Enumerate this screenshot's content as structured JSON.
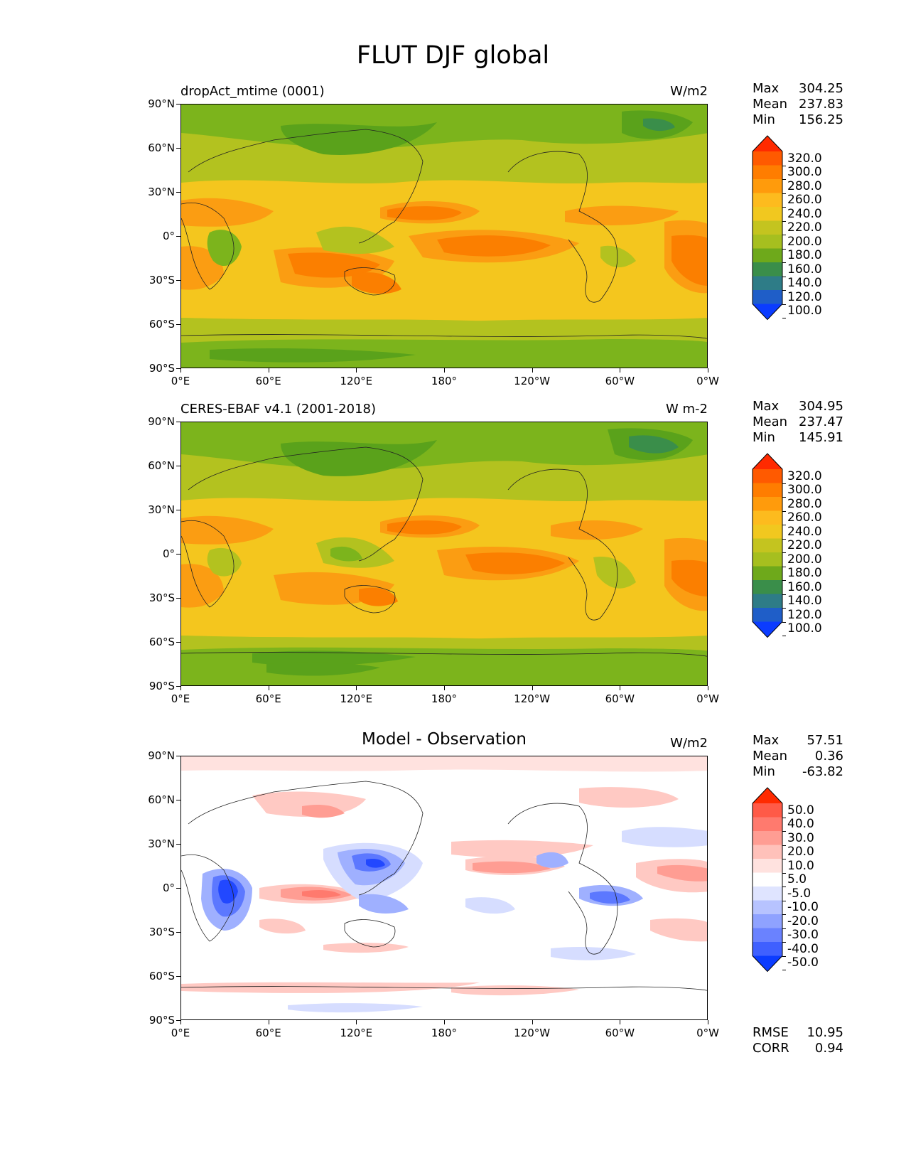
{
  "figure": {
    "title": "FLUT DJF global"
  },
  "axes": {
    "lat_ticks": [
      "90°N",
      "60°N",
      "30°N",
      "0°",
      "30°S",
      "60°S",
      "90°S"
    ],
    "lon_ticks": [
      "0°E",
      "60°E",
      "120°E",
      "180°",
      "120°W",
      "60°W",
      "0°W"
    ]
  },
  "panels": [
    {
      "id": "model",
      "title": "dropAct_mtime (0001)",
      "title_style": "left",
      "units": "W/m2",
      "stats": {
        "max_label": "Max",
        "max": "304.25",
        "mean_label": "Mean",
        "mean": "237.83",
        "min_label": "Min",
        "min": "156.25"
      },
      "colorbar": {
        "levels": [
          "320.0",
          "300.0",
          "280.0",
          "260.0",
          "240.0",
          "220.0",
          "200.0",
          "180.0",
          "160.0",
          "140.0",
          "120.0",
          "100.0"
        ],
        "colors": [
          "#ff2a00",
          "#ff5a00",
          "#ff7d00",
          "#ff9b0c",
          "#fdbb1e",
          "#f1c81f",
          "#c4c41f",
          "#a6bf1f",
          "#6ea91b",
          "#3a8e4a",
          "#2e7c87",
          "#1f5ec8",
          "#0b3cff"
        ]
      }
    },
    {
      "id": "obs",
      "title": "CERES-EBAF v4.1 (2001-2018)",
      "title_style": "left",
      "units": "W m-2",
      "stats": {
        "max_label": "Max",
        "max": "304.95",
        "mean_label": "Mean",
        "mean": "237.47",
        "min_label": "Min",
        "min": "145.91"
      },
      "colorbar": {
        "levels": [
          "320.0",
          "300.0",
          "280.0",
          "260.0",
          "240.0",
          "220.0",
          "200.0",
          "180.0",
          "160.0",
          "140.0",
          "120.0",
          "100.0"
        ],
        "colors": [
          "#ff2a00",
          "#ff5a00",
          "#ff7d00",
          "#ff9b0c",
          "#fdbb1e",
          "#f1c81f",
          "#c4c41f",
          "#a6bf1f",
          "#6ea91b",
          "#3a8e4a",
          "#2e7c87",
          "#1f5ec8",
          "#0b3cff"
        ]
      }
    },
    {
      "id": "diff",
      "title": "Model - Observation",
      "title_style": "center",
      "units": "W/m2",
      "stats": {
        "max_label": "Max",
        "max": "57.51",
        "mean_label": "Mean",
        "mean": "0.36",
        "min_label": "Min",
        "min": "-63.82"
      },
      "colorbar": {
        "levels": [
          "50.0",
          "40.0",
          "30.0",
          "20.0",
          "10.0",
          "5.0",
          "-5.0",
          "-10.0",
          "-20.0",
          "-30.0",
          "-40.0",
          "-50.0"
        ],
        "colors": [
          "#ff2a00",
          "#ff5a47",
          "#ff7a6e",
          "#ff9d93",
          "#ffc1ba",
          "#ffe2df",
          "#ffffff",
          "#dfe4ff",
          "#b7c3ff",
          "#8fa2ff",
          "#6a82ff",
          "#3f60ff",
          "#0b3cff"
        ]
      },
      "metrics": {
        "rmse_label": "RMSE",
        "rmse": "10.95",
        "corr_label": "CORR",
        "corr": "0.94"
      }
    }
  ],
  "map_colors": {
    "green_dark": "#5aa21b",
    "green": "#7cb41c",
    "olive": "#b3c21f",
    "yellow": "#f4c61e",
    "orange": "#fb9d12",
    "dark_orange": "#fb7f00",
    "teal": "#3a8e4a",
    "diff_red1": "#ffc9c3",
    "diff_red2": "#ff9d93",
    "diff_red3": "#ff7a6e",
    "diff_blue1": "#d6ddff",
    "diff_blue2": "#9fb0ff",
    "diff_blue3": "#5c78ff",
    "diff_blue4": "#2248ff"
  }
}
